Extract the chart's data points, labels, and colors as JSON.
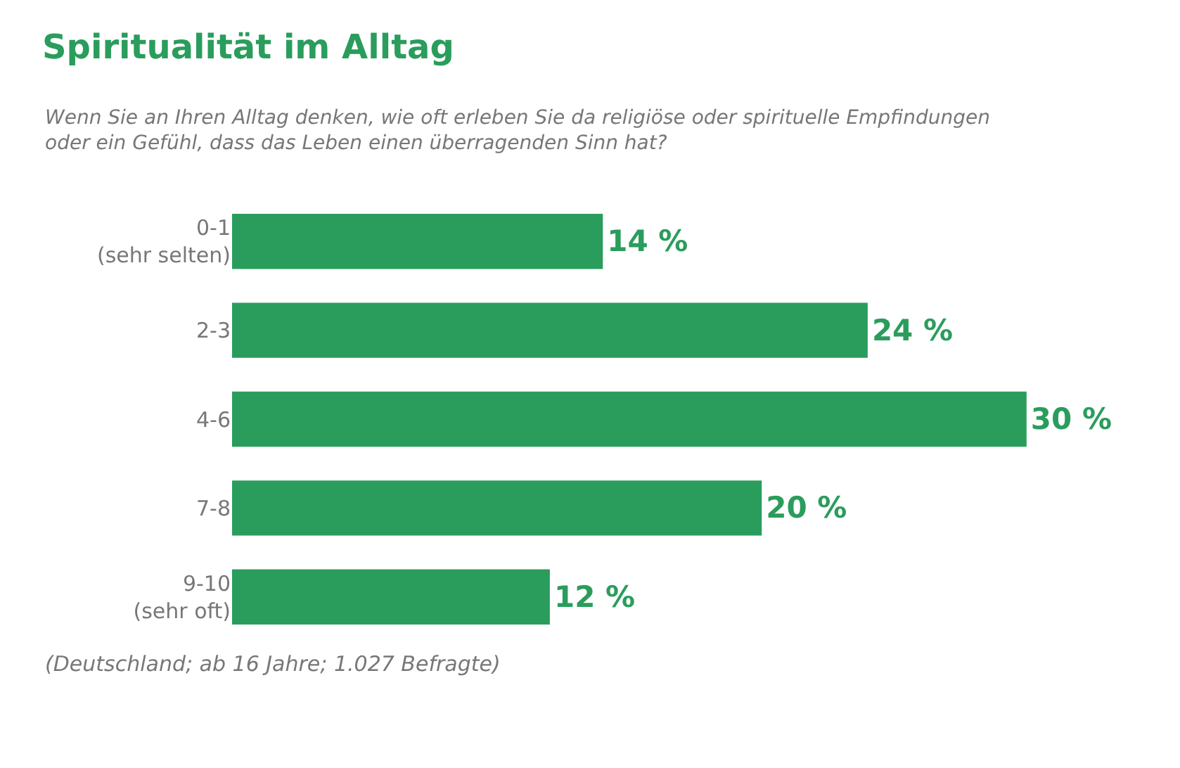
{
  "chart_data": {
    "type": "bar",
    "orientation": "horizontal",
    "title": "Spiritualität im Alltag",
    "subtitle": "Wenn Sie an Ihren Alltag denken, wie oft erleben Sie da religiöse oder spirituelle Empfindungen\noder ein Gefühl, dass das Leben einen überragenden Sinn hat?",
    "categories": [
      "0-1\n(sehr selten)",
      "2-3",
      "4-6",
      "7-8",
      "9-10\n(sehr oft)"
    ],
    "values": [
      14,
      24,
      30,
      20,
      12
    ],
    "value_labels": [
      "14 %",
      "24 %",
      "30 %",
      "20 %",
      "12 %"
    ],
    "color": "#2a9d5c",
    "annotations": [
      "(Deutschland; ab 16 Jahre; 1.027 Befragte)"
    ],
    "legend": false
  }
}
